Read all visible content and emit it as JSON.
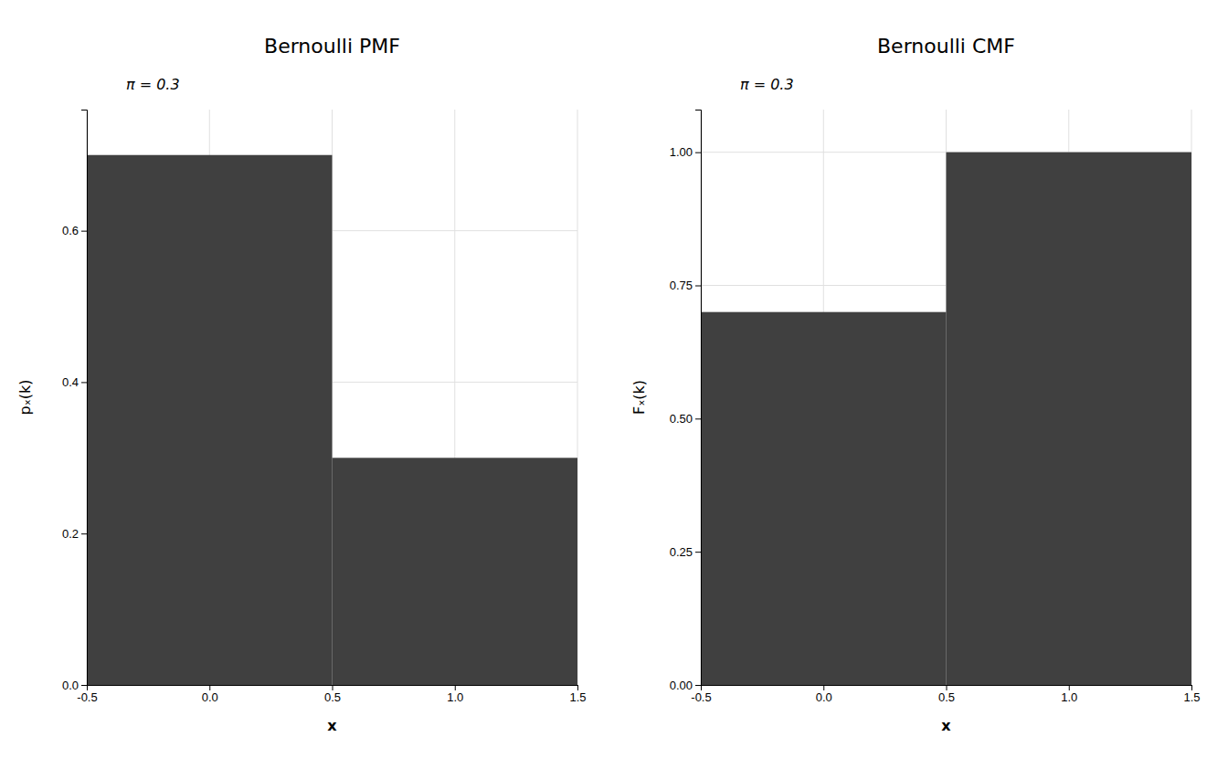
{
  "chart_data": [
    {
      "type": "histogram",
      "title": "Bernoulli PMF",
      "subtitle": "π = 0.3",
      "x_label": "x",
      "y_label": "pₓ(k)",
      "bins": [
        -0.5,
        0.5,
        1.5
      ],
      "values": [
        0.7,
        0.3
      ],
      "color": "#404040",
      "xlim": [
        -0.5,
        1.5
      ],
      "xticks": [
        -0.5,
        {
          "value": 0.0,
          "label": "0.0"
        },
        0.5,
        {
          "value": 1.0,
          "label": "1.0"
        },
        1.5
      ],
      "ylim": [
        0,
        0.76
      ],
      "yticks": [
        {
          "value": 0.0,
          "label": "0.0"
        },
        0.2,
        0.4,
        0.6
      ],
      "grid": true
    },
    {
      "type": "histogram",
      "title": "Bernoulli CMF",
      "subtitle": "π = 0.3",
      "x_label": "x",
      "y_label": "Fₓ(k)",
      "bins": [
        -0.5,
        0.5,
        1.5
      ],
      "values": [
        0.7,
        1.0
      ],
      "color": "#404040",
      "xlim": [
        -0.5,
        1.5
      ],
      "xticks": [
        -0.5,
        {
          "value": 0.0,
          "label": "0.0"
        },
        0.5,
        {
          "value": 1.0,
          "label": "1.0"
        },
        1.5
      ],
      "ylim": [
        0,
        1.08
      ],
      "yticks": [
        {
          "value": 0.0,
          "label": "0.00"
        },
        0.25,
        {
          "value": 0.5,
          "label": "0.50"
        },
        0.75,
        {
          "value": 1.0,
          "label": "1.00"
        }
      ],
      "grid": true
    }
  ]
}
